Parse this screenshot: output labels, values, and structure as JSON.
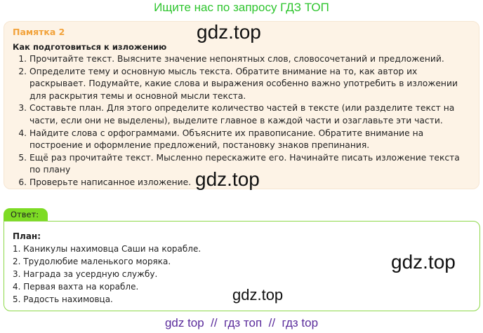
{
  "banner": "Ищите нас по запросу ГДЗ ТОП",
  "memo": {
    "title": "Памятка 2",
    "heading": "Как подготовиться к изложению",
    "steps": [
      "Прочитайте текст. Выясните значение непонятных слов, словосочетаний и предложений.",
      "Определите тему и основную мысль текста. Обратите внимание на то, как автор их раскрывает. Подумайте, какие слова и выражения особенно важно употребить в изложении для раскрытия темы и основной мысли текста.",
      "Составьте план. Для этого определите количество частей в тексте (или разделите текст на части, если они не выделены), выделите главное в каждой части и озаглавьте эти части.",
      "Найдите слова с орфограммами. Объясните их правописание. Обратите внимание на построение и оформление предложений, постановку знаков препинания.",
      "Ещё раз прочитайте текст. Мысленно перескажите его. Начинайте писать изложение текста по плану",
      "Проверьте написанное изложение."
    ]
  },
  "answer": {
    "tab": "Ответ:",
    "heading": "План:",
    "items": [
      "1. Каникулы нахимовца Саши на корабле.",
      "2. Трудолюбие маленького моряка.",
      "3. Награда за усердную службу.",
      "4. Первая вахта на корабле.",
      "5. Радость нахимовца."
    ]
  },
  "watermark": "gdz.top",
  "footer": "gdz top  //  гдз топ  //  гдз top"
}
